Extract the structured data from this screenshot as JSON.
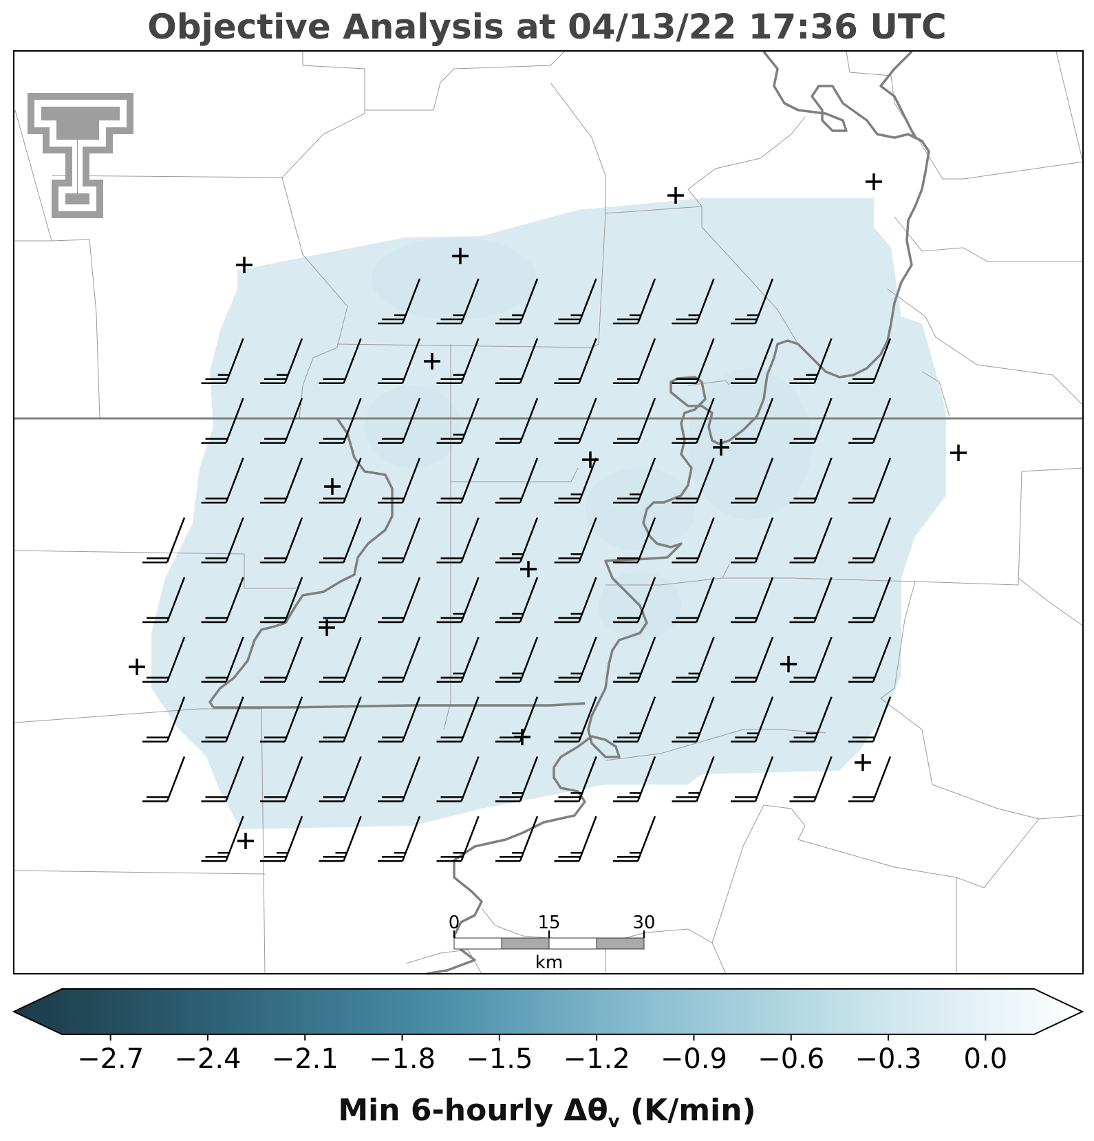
{
  "title": "Objective Analysis at 04/13/22 17:36 UTC",
  "logo": {
    "name": "Texas Tech double-T logo",
    "color": "#9e9e9e"
  },
  "colors": {
    "field_fill": "#d9ebf1",
    "field_patch": "#d2e6ee",
    "county_line": "#9a9a9a",
    "state_line": "#808080",
    "river": "#7f7f7f",
    "barb": "#000000",
    "station": "#000000"
  },
  "scale_bar": {
    "ticks": [
      "0",
      "15",
      "30"
    ],
    "unit": "km"
  },
  "colorbar": {
    "ticks": [
      "−2.7",
      "−2.4",
      "−2.1",
      "−1.8",
      "−1.5",
      "−1.2",
      "−0.9",
      "−0.6",
      "−0.3",
      "0.0"
    ],
    "tick_values": [
      -2.7,
      -2.4,
      -2.1,
      -1.8,
      -1.5,
      -1.2,
      -0.9,
      -0.6,
      -0.3,
      0.0
    ],
    "range": [
      -2.85,
      0.15
    ],
    "extend": "both",
    "color_stops": [
      "#1b3a47",
      "#2f6478",
      "#4a8ea8",
      "#8cc0d2",
      "#c9e4ec",
      "#ffffff"
    ],
    "label_main": "Min 6-hourly Δθ",
    "label_sub": "v",
    "label_unit": "(K/min)"
  },
  "wind_barbs": {
    "description_units": "knots",
    "rows": [
      {
        "speeds": [
          0,
          0,
          0,
          0,
          25,
          25,
          25,
          25,
          25,
          25,
          25,
          0,
          0
        ]
      },
      {
        "speeds": [
          0,
          25,
          25,
          20,
          20,
          25,
          20,
          20,
          20,
          20,
          20,
          25,
          20
        ]
      },
      {
        "speeds": [
          0,
          20,
          20,
          20,
          20,
          25,
          20,
          20,
          20,
          20,
          20,
          20,
          20
        ]
      },
      {
        "speeds": [
          0,
          20,
          20,
          20,
          20,
          20,
          20,
          25,
          25,
          20,
          20,
          20,
          20
        ]
      },
      {
        "speeds": [
          20,
          20,
          20,
          20,
          20,
          20,
          25,
          25,
          20,
          20,
          20,
          20,
          20
        ]
      },
      {
        "speeds": [
          20,
          20,
          20,
          20,
          20,
          25,
          25,
          25,
          20,
          20,
          20,
          20,
          20
        ]
      },
      {
        "speeds": [
          20,
          20,
          20,
          20,
          20,
          25,
          25,
          25,
          25,
          25,
          20,
          20,
          20
        ]
      },
      {
        "speeds": [
          20,
          20,
          20,
          20,
          20,
          20,
          25,
          25,
          25,
          25,
          25,
          25,
          20
        ]
      },
      {
        "speeds": [
          20,
          20,
          20,
          20,
          20,
          20,
          25,
          25,
          25,
          25,
          20,
          20,
          20
        ]
      },
      {
        "speeds": [
          0,
          25,
          25,
          25,
          25,
          25,
          25,
          25,
          25,
          0,
          0,
          0,
          0
        ]
      }
    ]
  }
}
